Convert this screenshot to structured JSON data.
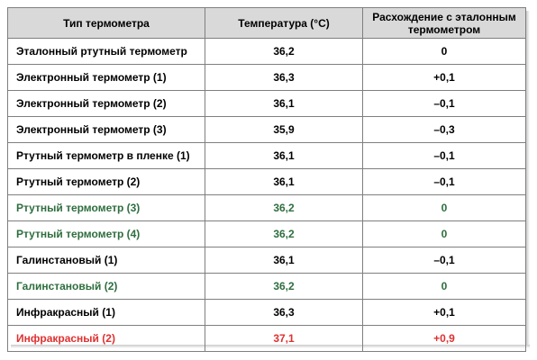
{
  "table": {
    "headers": {
      "type": "Тип термометра",
      "temperature": "Температура (°C)",
      "difference": "Расхождение с эталонным термометром"
    },
    "rows": [
      {
        "type": "Эталонный ртутный термометр",
        "temperature": "36,2",
        "difference": "0",
        "highlight": "black"
      },
      {
        "type": "Электронный термометр (1)",
        "temperature": "36,3",
        "difference": "+0,1",
        "highlight": "black"
      },
      {
        "type": "Электронный термометр (2)",
        "temperature": "36,1",
        "difference": "–0,1",
        "highlight": "black"
      },
      {
        "type": "Электронный термометр (3)",
        "temperature": "35,9",
        "difference": "–0,3",
        "highlight": "black"
      },
      {
        "type": "Ртутный термометр в пленке (1)",
        "temperature": "36,1",
        "difference": "–0,1",
        "highlight": "black"
      },
      {
        "type": "Ртутный термометр (2)",
        "temperature": "36,1",
        "difference": "–0,1",
        "highlight": "black"
      },
      {
        "type": "Ртутный термометр (3)",
        "temperature": "36,2",
        "difference": "0",
        "highlight": "green"
      },
      {
        "type": "Ртутный термометр (4)",
        "temperature": "36,2",
        "difference": "0",
        "highlight": "green"
      },
      {
        "type": "Галинстановый (1)",
        "temperature": "36,1",
        "difference": "–0,1",
        "highlight": "black"
      },
      {
        "type": "Галинстановый (2)",
        "temperature": "36,2",
        "difference": "0",
        "highlight": "green"
      },
      {
        "type": "Инфракрасный (1)",
        "temperature": "36,3",
        "difference": "+0,1",
        "highlight": "black"
      },
      {
        "type": "Инфракрасный (2)",
        "temperature": "37,1",
        "difference": "+0,9",
        "highlight": "red"
      }
    ]
  },
  "colors": {
    "header_bg": "#d9d9d9",
    "border": "#7f7f7f",
    "black": "#000000",
    "green": "#2e6e3e",
    "red": "#e03030"
  }
}
